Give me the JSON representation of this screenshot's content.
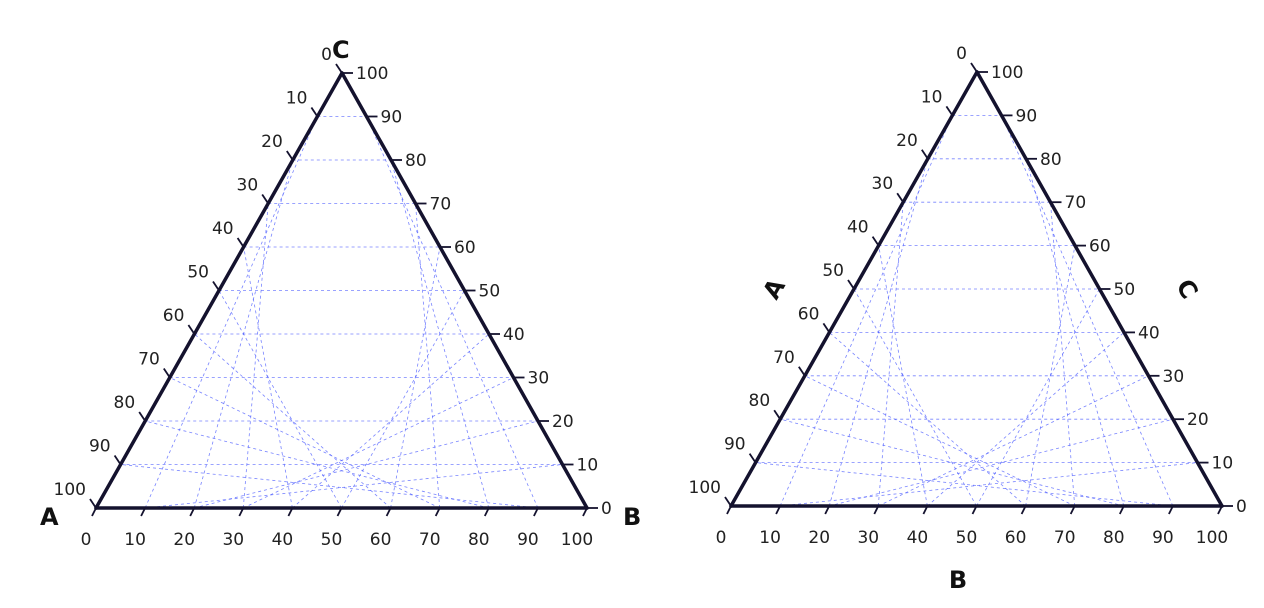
{
  "chart_data": [
    {
      "type": "ternary",
      "title": "",
      "scale": 100,
      "tick_step": 10,
      "grid": true,
      "grid_style": "dashed",
      "colors": {
        "grid": "#4b5bff",
        "edge": "#14122e"
      },
      "corner_labels": {
        "left": "A",
        "right": "B",
        "top": "C"
      },
      "axis_titles": {
        "left": "",
        "bottom": "",
        "right": ""
      },
      "left_ticks": [
        "0",
        "10",
        "20",
        "30",
        "40",
        "50",
        "60",
        "70",
        "80",
        "90",
        "100"
      ],
      "right_ticks": [
        "0",
        "10",
        "20",
        "30",
        "40",
        "50",
        "60",
        "70",
        "80",
        "90",
        "100"
      ],
      "bottom_ticks": [
        "0",
        "10",
        "20",
        "30",
        "40",
        "50",
        "60",
        "70",
        "80",
        "90",
        "100"
      ]
    },
    {
      "type": "ternary",
      "title": "",
      "scale": 100,
      "tick_step": 10,
      "grid": true,
      "grid_style": "dashed",
      "colors": {
        "grid": "#4b5bff",
        "edge": "#14122e"
      },
      "corner_labels": {
        "left": "",
        "right": "",
        "top": ""
      },
      "axis_titles": {
        "left": "A",
        "bottom": "B",
        "right": "C"
      },
      "left_ticks": [
        "0",
        "10",
        "20",
        "30",
        "40",
        "50",
        "60",
        "70",
        "80",
        "90",
        "100"
      ],
      "right_ticks": [
        "0",
        "10",
        "20",
        "30",
        "40",
        "50",
        "60",
        "70",
        "80",
        "90",
        "100"
      ],
      "bottom_ticks": [
        "0",
        "10",
        "20",
        "30",
        "40",
        "50",
        "60",
        "70",
        "80",
        "90",
        "100"
      ]
    }
  ]
}
